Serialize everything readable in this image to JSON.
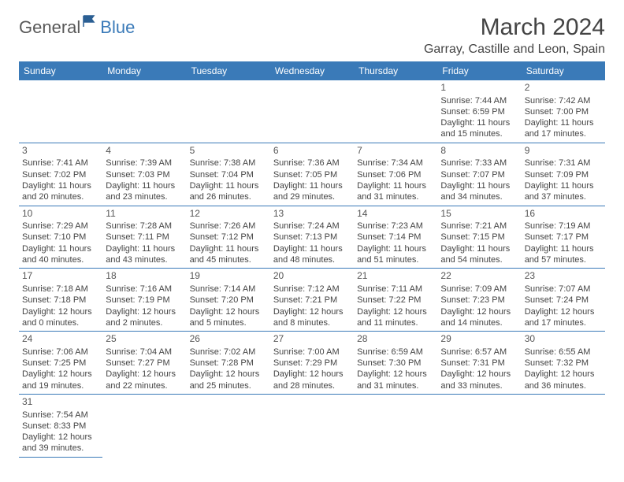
{
  "logo": {
    "general": "General",
    "blue": "Blue"
  },
  "title": "March 2024",
  "location": "Garray, Castille and Leon, Spain",
  "day_headers": [
    "Sunday",
    "Monday",
    "Tuesday",
    "Wednesday",
    "Thursday",
    "Friday",
    "Saturday"
  ],
  "colors": {
    "header_bg": "#3a7ab8",
    "header_text": "#ffffff",
    "border": "#3a7ab8",
    "text": "#444444"
  },
  "weeks": [
    [
      null,
      null,
      null,
      null,
      null,
      {
        "n": "1",
        "sr": "Sunrise: 7:44 AM",
        "ss": "Sunset: 6:59 PM",
        "dl1": "Daylight: 11 hours",
        "dl2": "and 15 minutes."
      },
      {
        "n": "2",
        "sr": "Sunrise: 7:42 AM",
        "ss": "Sunset: 7:00 PM",
        "dl1": "Daylight: 11 hours",
        "dl2": "and 17 minutes."
      }
    ],
    [
      {
        "n": "3",
        "sr": "Sunrise: 7:41 AM",
        "ss": "Sunset: 7:02 PM",
        "dl1": "Daylight: 11 hours",
        "dl2": "and 20 minutes."
      },
      {
        "n": "4",
        "sr": "Sunrise: 7:39 AM",
        "ss": "Sunset: 7:03 PM",
        "dl1": "Daylight: 11 hours",
        "dl2": "and 23 minutes."
      },
      {
        "n": "5",
        "sr": "Sunrise: 7:38 AM",
        "ss": "Sunset: 7:04 PM",
        "dl1": "Daylight: 11 hours",
        "dl2": "and 26 minutes."
      },
      {
        "n": "6",
        "sr": "Sunrise: 7:36 AM",
        "ss": "Sunset: 7:05 PM",
        "dl1": "Daylight: 11 hours",
        "dl2": "and 29 minutes."
      },
      {
        "n": "7",
        "sr": "Sunrise: 7:34 AM",
        "ss": "Sunset: 7:06 PM",
        "dl1": "Daylight: 11 hours",
        "dl2": "and 31 minutes."
      },
      {
        "n": "8",
        "sr": "Sunrise: 7:33 AM",
        "ss": "Sunset: 7:07 PM",
        "dl1": "Daylight: 11 hours",
        "dl2": "and 34 minutes."
      },
      {
        "n": "9",
        "sr": "Sunrise: 7:31 AM",
        "ss": "Sunset: 7:09 PM",
        "dl1": "Daylight: 11 hours",
        "dl2": "and 37 minutes."
      }
    ],
    [
      {
        "n": "10",
        "sr": "Sunrise: 7:29 AM",
        "ss": "Sunset: 7:10 PM",
        "dl1": "Daylight: 11 hours",
        "dl2": "and 40 minutes."
      },
      {
        "n": "11",
        "sr": "Sunrise: 7:28 AM",
        "ss": "Sunset: 7:11 PM",
        "dl1": "Daylight: 11 hours",
        "dl2": "and 43 minutes."
      },
      {
        "n": "12",
        "sr": "Sunrise: 7:26 AM",
        "ss": "Sunset: 7:12 PM",
        "dl1": "Daylight: 11 hours",
        "dl2": "and 45 minutes."
      },
      {
        "n": "13",
        "sr": "Sunrise: 7:24 AM",
        "ss": "Sunset: 7:13 PM",
        "dl1": "Daylight: 11 hours",
        "dl2": "and 48 minutes."
      },
      {
        "n": "14",
        "sr": "Sunrise: 7:23 AM",
        "ss": "Sunset: 7:14 PM",
        "dl1": "Daylight: 11 hours",
        "dl2": "and 51 minutes."
      },
      {
        "n": "15",
        "sr": "Sunrise: 7:21 AM",
        "ss": "Sunset: 7:15 PM",
        "dl1": "Daylight: 11 hours",
        "dl2": "and 54 minutes."
      },
      {
        "n": "16",
        "sr": "Sunrise: 7:19 AM",
        "ss": "Sunset: 7:17 PM",
        "dl1": "Daylight: 11 hours",
        "dl2": "and 57 minutes."
      }
    ],
    [
      {
        "n": "17",
        "sr": "Sunrise: 7:18 AM",
        "ss": "Sunset: 7:18 PM",
        "dl1": "Daylight: 12 hours",
        "dl2": "and 0 minutes."
      },
      {
        "n": "18",
        "sr": "Sunrise: 7:16 AM",
        "ss": "Sunset: 7:19 PM",
        "dl1": "Daylight: 12 hours",
        "dl2": "and 2 minutes."
      },
      {
        "n": "19",
        "sr": "Sunrise: 7:14 AM",
        "ss": "Sunset: 7:20 PM",
        "dl1": "Daylight: 12 hours",
        "dl2": "and 5 minutes."
      },
      {
        "n": "20",
        "sr": "Sunrise: 7:12 AM",
        "ss": "Sunset: 7:21 PM",
        "dl1": "Daylight: 12 hours",
        "dl2": "and 8 minutes."
      },
      {
        "n": "21",
        "sr": "Sunrise: 7:11 AM",
        "ss": "Sunset: 7:22 PM",
        "dl1": "Daylight: 12 hours",
        "dl2": "and 11 minutes."
      },
      {
        "n": "22",
        "sr": "Sunrise: 7:09 AM",
        "ss": "Sunset: 7:23 PM",
        "dl1": "Daylight: 12 hours",
        "dl2": "and 14 minutes."
      },
      {
        "n": "23",
        "sr": "Sunrise: 7:07 AM",
        "ss": "Sunset: 7:24 PM",
        "dl1": "Daylight: 12 hours",
        "dl2": "and 17 minutes."
      }
    ],
    [
      {
        "n": "24",
        "sr": "Sunrise: 7:06 AM",
        "ss": "Sunset: 7:25 PM",
        "dl1": "Daylight: 12 hours",
        "dl2": "and 19 minutes."
      },
      {
        "n": "25",
        "sr": "Sunrise: 7:04 AM",
        "ss": "Sunset: 7:27 PM",
        "dl1": "Daylight: 12 hours",
        "dl2": "and 22 minutes."
      },
      {
        "n": "26",
        "sr": "Sunrise: 7:02 AM",
        "ss": "Sunset: 7:28 PM",
        "dl1": "Daylight: 12 hours",
        "dl2": "and 25 minutes."
      },
      {
        "n": "27",
        "sr": "Sunrise: 7:00 AM",
        "ss": "Sunset: 7:29 PM",
        "dl1": "Daylight: 12 hours",
        "dl2": "and 28 minutes."
      },
      {
        "n": "28",
        "sr": "Sunrise: 6:59 AM",
        "ss": "Sunset: 7:30 PM",
        "dl1": "Daylight: 12 hours",
        "dl2": "and 31 minutes."
      },
      {
        "n": "29",
        "sr": "Sunrise: 6:57 AM",
        "ss": "Sunset: 7:31 PM",
        "dl1": "Daylight: 12 hours",
        "dl2": "and 33 minutes."
      },
      {
        "n": "30",
        "sr": "Sunrise: 6:55 AM",
        "ss": "Sunset: 7:32 PM",
        "dl1": "Daylight: 12 hours",
        "dl2": "and 36 minutes."
      }
    ],
    [
      {
        "n": "31",
        "sr": "Sunrise: 7:54 AM",
        "ss": "Sunset: 8:33 PM",
        "dl1": "Daylight: 12 hours",
        "dl2": "and 39 minutes."
      },
      null,
      null,
      null,
      null,
      null,
      null
    ]
  ]
}
